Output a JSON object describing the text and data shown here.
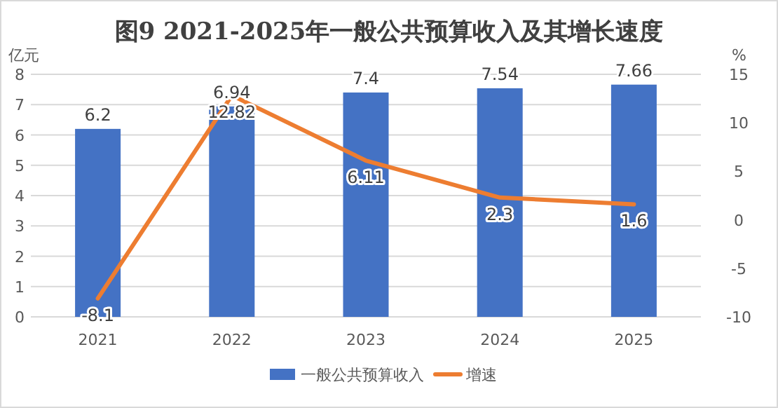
{
  "chart_data": {
    "type": "bar",
    "title": "图9 2021-2025年一般公共预算收入及其增长速度",
    "categories": [
      "2021",
      "2022",
      "2023",
      "2024",
      "2025"
    ],
    "series": [
      {
        "name": "一般公共预算收入",
        "color": "#4472c4",
        "values": [
          6.2,
          6.94,
          7.4,
          7.54,
          7.66
        ]
      },
      {
        "name": "增速",
        "type": "line",
        "axis": "y2",
        "color": "#ed7d31",
        "values": [
          -8.1,
          12.82,
          6.11,
          2.3,
          1.6
        ]
      }
    ],
    "ylabel": "亿元",
    "y2label": "%",
    "ylim": [
      0,
      8
    ],
    "yticks": [
      0,
      1,
      2,
      3,
      4,
      5,
      6,
      7,
      8
    ],
    "y2lim": [
      -10,
      15
    ],
    "y2ticks": [
      -10,
      -5,
      0,
      5,
      10,
      15
    ],
    "grid": "y",
    "data_labels": true,
    "legend": "bottom"
  }
}
